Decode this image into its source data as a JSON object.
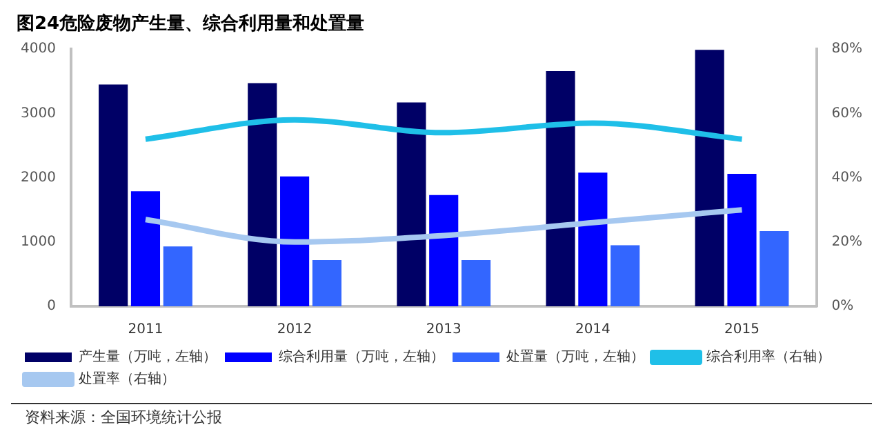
{
  "chart_data": {
    "type": "bar",
    "title": "图24危险废物产生量、综合利用量和处置量",
    "categories": [
      "2011",
      "2012",
      "2013",
      "2014",
      "2015"
    ],
    "series": [
      {
        "name": "产生量（万吨，左轴）",
        "color": "#000066",
        "values": [
          3450,
          3470,
          3170,
          3660,
          3990
        ]
      },
      {
        "name": "综合利用量（万吨，左轴）",
        "color": "#0000ff",
        "values": [
          1790,
          2020,
          1730,
          2080,
          2060
        ]
      },
      {
        "name": "处置量（万吨，左轴）",
        "color": "#3366ff",
        "values": [
          930,
          720,
          720,
          950,
          1170
        ]
      },
      {
        "name": "综合利用率（右轴）",
        "type": "line",
        "axis": "y2",
        "color": "#1fbfe8",
        "values": [
          52,
          58,
          54,
          57,
          52
        ]
      },
      {
        "name": "处置率（右轴）",
        "type": "line",
        "axis": "y2",
        "color": "#a6c8f0",
        "values": [
          27,
          20,
          22,
          26,
          30
        ]
      }
    ],
    "ylim": [
      0,
      4000
    ],
    "yticks": [
      0,
      1000,
      2000,
      3000,
      4000
    ],
    "y2lim": [
      0,
      80
    ],
    "y2ticks": [
      {
        "value": 0,
        "label": "0%"
      },
      {
        "value": 20,
        "label": "20%"
      },
      {
        "value": 40,
        "label": "40%"
      },
      {
        "value": 60,
        "label": "60%"
      },
      {
        "value": 80,
        "label": "80%"
      }
    ],
    "grid": false,
    "legend": "bottom",
    "annotations": [
      "资料来源：全国环境统计公报"
    ]
  }
}
